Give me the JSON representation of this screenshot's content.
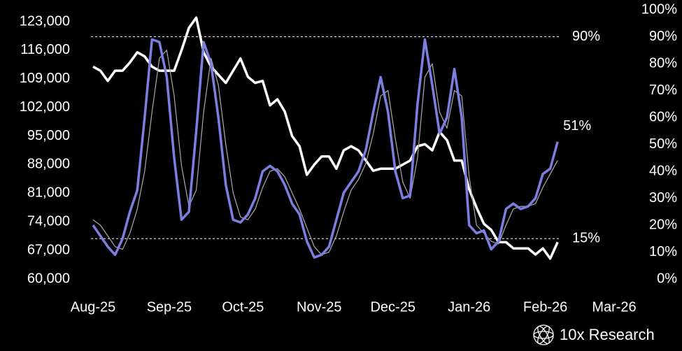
{
  "chart_data": {
    "type": "line",
    "x": [
      0,
      3,
      6,
      9,
      12,
      15,
      18,
      21,
      24,
      27,
      30,
      33,
      36,
      39,
      42,
      45,
      48,
      51,
      54,
      57,
      60,
      63,
      66,
      69,
      72,
      75,
      78,
      81,
      84,
      87,
      90,
      93,
      96,
      99,
      102,
      105,
      108,
      111,
      114,
      117,
      120,
      123,
      126,
      129,
      132,
      135,
      138,
      141,
      144,
      147,
      150,
      153,
      156,
      159,
      162,
      165,
      168,
      171,
      174,
      177,
      180,
      183,
      186,
      189
    ],
    "xlim": [
      0,
      212
    ],
    "xticks": [
      {
        "value": 0,
        "label": "Aug-25"
      },
      {
        "value": 31,
        "label": "Sep-25"
      },
      {
        "value": 61,
        "label": "Oct-25"
      },
      {
        "value": 92,
        "label": "Nov-25"
      },
      {
        "value": 122,
        "label": "Dec-25"
      },
      {
        "value": 153,
        "label": "Jan-26"
      },
      {
        "value": 184,
        "label": "Feb-26"
      },
      {
        "value": 212,
        "label": "Mar-26"
      }
    ],
    "ylim": [
      60000,
      123000
    ],
    "yticks": [
      {
        "value": 60000,
        "label": "60,000"
      },
      {
        "value": 67000,
        "label": "67,000"
      },
      {
        "value": 74000,
        "label": "74,000"
      },
      {
        "value": 81000,
        "label": "81,000"
      },
      {
        "value": 88000,
        "label": "88,000"
      },
      {
        "value": 95000,
        "label": "95,000"
      },
      {
        "value": 102000,
        "label": "102,000"
      },
      {
        "value": 109000,
        "label": "109,000"
      },
      {
        "value": 116000,
        "label": "116,000"
      },
      {
        "value": 123000,
        "label": "123,000"
      }
    ],
    "y2lim": [
      0,
      100
    ],
    "y2ticks": [
      {
        "value": 0,
        "label": "0%"
      },
      {
        "value": 10,
        "label": "10%"
      },
      {
        "value": 20,
        "label": "20%"
      },
      {
        "value": 30,
        "label": "30%"
      },
      {
        "value": 40,
        "label": "40%"
      },
      {
        "value": 50,
        "label": "50%"
      },
      {
        "value": 60,
        "label": "60%"
      },
      {
        "value": 70,
        "label": "70%"
      },
      {
        "value": 80,
        "label": "80%"
      },
      {
        "value": 90,
        "label": "90%"
      },
      {
        "value": 100,
        "label": "100%"
      }
    ],
    "series": [
      {
        "color": "#ffffff",
        "width": 3.5,
        "values": [
          112000,
          111000,
          108500,
          111000,
          111000,
          113000,
          115500,
          114500,
          112000,
          111000,
          111000,
          111000,
          116000,
          121500,
          124000,
          115500,
          112000,
          110000,
          108000,
          111000,
          114000,
          109500,
          108000,
          108500,
          102500,
          104000,
          101000,
          95000,
          92500,
          85500,
          88000,
          90000,
          90000,
          87000,
          91500,
          92500,
          91500,
          89000,
          86500,
          87000,
          87000,
          87000,
          88000,
          89000,
          92500,
          93000,
          91500,
          96000,
          94000,
          89000,
          89000,
          82000,
          77500,
          73500,
          72000,
          69000,
          69000,
          67500,
          67500,
          67500,
          66000,
          67500,
          65000,
          69000
        ]
      },
      {
        "color": "#aaaaaa",
        "width": 1.2,
        "axis": "y2",
        "values": [
          22,
          20,
          16,
          12,
          11,
          17,
          26,
          40,
          62,
          82,
          85,
          68,
          42,
          27,
          33,
          62,
          82,
          72,
          50,
          32,
          23,
          22,
          26,
          34,
          40,
          41,
          38,
          32,
          26,
          19,
          12,
          9,
          10,
          16,
          25,
          33,
          37,
          43,
          54,
          68,
          70,
          52,
          36,
          30,
          45,
          75,
          80,
          62,
          56,
          70,
          68,
          38,
          20,
          17,
          14,
          13,
          20,
          26,
          27,
          27,
          28,
          34,
          39,
          44
        ]
      },
      {
        "color": "#7b7fe0",
        "width": 3.5,
        "axis": "y2",
        "values": [
          20,
          16,
          12,
          9,
          15,
          25,
          33,
          60,
          89,
          88,
          75,
          45,
          22,
          25,
          55,
          88,
          80,
          60,
          35,
          22,
          21,
          24,
          30,
          40,
          42,
          40,
          35,
          28,
          24,
          14,
          8,
          9,
          12,
          22,
          32,
          36,
          40,
          48,
          62,
          75,
          62,
          40,
          30,
          31,
          65,
          89,
          72,
          54,
          60,
          78,
          60,
          20,
          17,
          18,
          11,
          14,
          26,
          28,
          26,
          27,
          30,
          39,
          41,
          51
        ]
      }
    ],
    "reference_lines": [
      {
        "value": 90,
        "label": "90%"
      },
      {
        "value": 15,
        "label": "15%"
      }
    ],
    "end_label": "51%",
    "brand": "10x Research"
  }
}
